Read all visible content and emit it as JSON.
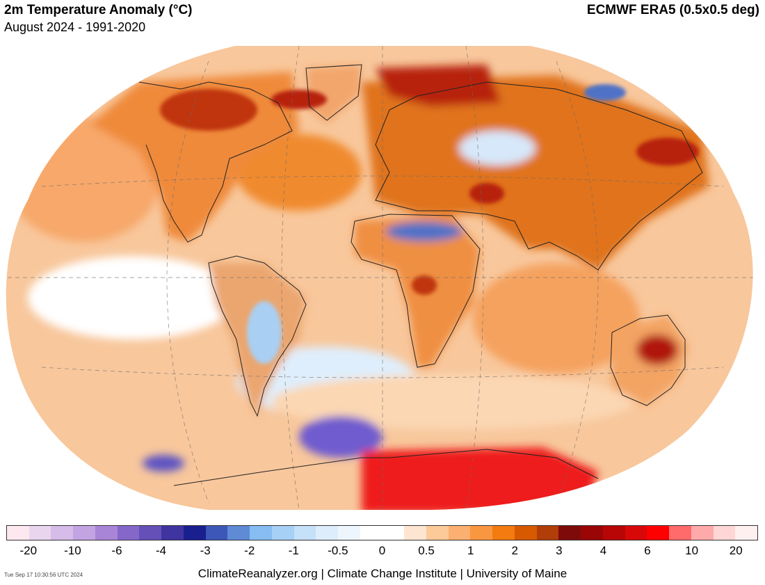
{
  "header": {
    "title": "2m Temperature Anomaly (°C)",
    "subtitle": "August 2024 - 1991-2020",
    "source": "ECMWF ERA5 (0.5x0.5 deg)"
  },
  "colorbar": {
    "colors": [
      "#fde8ef",
      "#e9d6ee",
      "#d5bce9",
      "#c3a4e3",
      "#a985d8",
      "#8567c9",
      "#6450b6",
      "#3f34a0",
      "#1a1f8f",
      "#3d57b8",
      "#5f8ad6",
      "#86bdf2",
      "#a6d0f6",
      "#c5e0f9",
      "#deedfb",
      "#eef6fd",
      "#ffffff",
      "#ffffff",
      "#fde5d2",
      "#fcc999",
      "#fbb071",
      "#f99740",
      "#f47b10",
      "#d75a00",
      "#b13d08",
      "#7f0a0a",
      "#9a0606",
      "#b80606",
      "#d80808",
      "#ff0000",
      "#ff6a6a",
      "#ffaaaa",
      "#ffd6d6",
      "#fff0f0"
    ],
    "labels": [
      "-20",
      "-10",
      "-6",
      "-4",
      "-3",
      "-2",
      "-1",
      "-0.5",
      "0",
      "0.5",
      "1",
      "2",
      "3",
      "4",
      "6",
      "10",
      "20"
    ]
  },
  "footer": {
    "credit": "ClimateReanalyzer.org | Climate Change Institute | University of Maine",
    "timestamp": "Tue Sep 17 10:30:56 UTC 2024"
  },
  "map": {
    "projection": "Robinson",
    "ocean_base": "#f8c79c",
    "regions": [
      {
        "name": "north-pacific",
        "color": "#f7a86a"
      },
      {
        "name": "east-pacific-cool",
        "color": "#ffffff"
      },
      {
        "name": "north-atlantic",
        "color": "#f08a2e"
      },
      {
        "name": "south-pacific-cool",
        "color": "#dfeefc"
      },
      {
        "name": "southern-ocean",
        "color": "#fbd7b3"
      },
      {
        "name": "indian-ocean",
        "color": "#f5a25e"
      },
      {
        "name": "north-america",
        "color": "#ef8a3a"
      },
      {
        "name": "greenland",
        "color": "#f2a66c"
      },
      {
        "name": "south-america",
        "color": "#eba66f"
      },
      {
        "name": "europe-asia",
        "color": "#e0731e"
      },
      {
        "name": "siberia-warm",
        "color": "#b7240c"
      },
      {
        "name": "central-siberia-cool",
        "color": "#d7e8fa"
      },
      {
        "name": "africa",
        "color": "#ef8f42"
      },
      {
        "name": "sahel-cool",
        "color": "#4f72c6"
      },
      {
        "name": "australia",
        "color": "#f3a463"
      },
      {
        "name": "australia-hot",
        "color": "#b1140c"
      },
      {
        "name": "weddell-cold",
        "color": "#6f5bcf"
      },
      {
        "name": "antarctica-hot",
        "color": "#ee1c1c"
      },
      {
        "name": "ross-sea-cold",
        "color": "#5c53c2"
      }
    ]
  }
}
